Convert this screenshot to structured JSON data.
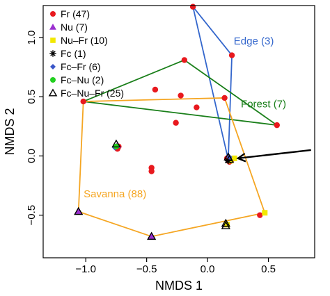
{
  "chart_data": {
    "type": "scatter",
    "xlabel": "NMDS 1",
    "ylabel": "NMDS 2",
    "xlim": [
      -1.35,
      0.88
    ],
    "ylim": [
      -0.86,
      1.27
    ],
    "xticks": [
      -1.0,
      -0.5,
      0.0,
      0.5
    ],
    "xtick_labels": [
      "−1.0",
      "−0.5",
      "0.0",
      "0.5"
    ],
    "yticks": [
      -0.5,
      0.0,
      0.5,
      1.0
    ],
    "ytick_labels": [
      "−0.5",
      "0.0",
      "0.5",
      "1.0"
    ],
    "grid": false,
    "legend_position": "top-left",
    "legend": [
      {
        "label": "Fr (47)",
        "marker": "circle",
        "color": "#e8191e"
      },
      {
        "label": "Nu (7)",
        "marker": "triangle",
        "color": "#9b30d0"
      },
      {
        "label": "Nu–Fr (10)",
        "marker": "square",
        "color": "#f2e800"
      },
      {
        "label": "Fc (1)",
        "marker": "asterisk",
        "color": "#000000"
      },
      {
        "label": "Fc–Fr (6)",
        "marker": "diamond",
        "color": "#3a56c8"
      },
      {
        "label": "Fc–Nu (2)",
        "marker": "circle",
        "color": "#22d020"
      },
      {
        "label": "Fc–Nu–Fr (25)",
        "marker": "open-triangle",
        "color": "#000000"
      }
    ],
    "hulls": [
      {
        "label": "Edge (3)",
        "color": "#3366cc",
        "label_at": [
          0.38,
          0.94
        ],
        "vertices": [
          [
            -0.12,
            1.26
          ],
          [
            0.2,
            0.85
          ],
          [
            0.17,
            -0.03
          ]
        ]
      },
      {
        "label": "Forest (7)",
        "color": "#1a7f1a",
        "label_at": [
          0.46,
          0.41
        ],
        "vertices": [
          [
            -0.19,
            0.81
          ],
          [
            0.57,
            0.26
          ],
          [
            -1.02,
            0.46
          ]
        ]
      },
      {
        "label": "Savanna (88)",
        "color": "#f5a623",
        "label_at": [
          -0.76,
          -0.35
        ],
        "vertices": [
          [
            -1.02,
            0.46
          ],
          [
            0.14,
            0.49
          ],
          [
            0.47,
            -0.48
          ],
          [
            -0.46,
            -0.68
          ],
          [
            -1.06,
            -0.47
          ]
        ]
      }
    ],
    "points": [
      {
        "group": "Fr",
        "x": -0.12,
        "y": 1.26
      },
      {
        "group": "Fr",
        "x": 0.2,
        "y": 0.85
      },
      {
        "group": "Fr",
        "x": -0.19,
        "y": 0.81
      },
      {
        "group": "Fr",
        "x": 0.57,
        "y": 0.26
      },
      {
        "group": "Fr",
        "x": -1.02,
        "y": 0.46
      },
      {
        "group": "Fr",
        "x": -0.43,
        "y": 0.56
      },
      {
        "group": "Fr",
        "x": -0.22,
        "y": 0.51
      },
      {
        "group": "Fr",
        "x": 0.14,
        "y": 0.49
      },
      {
        "group": "Fr",
        "x": -0.09,
        "y": 0.41
      },
      {
        "group": "Fr",
        "x": -0.26,
        "y": 0.28
      },
      {
        "group": "Fr",
        "x": -0.73,
        "y": 0.08
      },
      {
        "group": "Fr",
        "x": -0.74,
        "y": 0.06
      },
      {
        "group": "Fr",
        "x": -0.46,
        "y": -0.1
      },
      {
        "group": "Fr",
        "x": -0.46,
        "y": -0.13
      },
      {
        "group": "Fr",
        "x": 0.43,
        "y": -0.5
      },
      {
        "group": "Fr",
        "x": 0.16,
        "y": -0.02
      },
      {
        "group": "Fr",
        "x": 0.18,
        "y": -0.05
      },
      {
        "group": "Fr",
        "x": 0.2,
        "y": -0.03
      },
      {
        "group": "Nu",
        "x": -1.06,
        "y": -0.47
      },
      {
        "group": "Nu",
        "x": -0.46,
        "y": -0.68
      },
      {
        "group": "Nu",
        "x": 0.15,
        "y": -0.58
      },
      {
        "group": "Nu",
        "x": -0.74,
        "y": 0.09
      },
      {
        "group": "Nu-Fr",
        "x": 0.47,
        "y": -0.48
      },
      {
        "group": "Nu-Fr",
        "x": 0.16,
        "y": -0.58
      },
      {
        "group": "Nu-Fr",
        "x": 0.22,
        "y": -0.02
      },
      {
        "group": "Nu-Fr",
        "x": 0.19,
        "y": -0.04
      },
      {
        "group": "Fc",
        "x": 0.17,
        "y": -0.04
      },
      {
        "group": "Fc-Fr",
        "x": -0.76,
        "y": 0.07
      },
      {
        "group": "Fc-Fr",
        "x": 0.18,
        "y": -0.01
      },
      {
        "group": "Fc-Nu",
        "x": -0.75,
        "y": 0.08
      },
      {
        "group": "Fc-Nu-Fr",
        "x": -0.75,
        "y": 0.1
      },
      {
        "group": "Fc-Nu-Fr",
        "x": -1.06,
        "y": -0.47
      },
      {
        "group": "Fc-Nu-Fr",
        "x": -0.46,
        "y": -0.68
      },
      {
        "group": "Fc-Nu-Fr",
        "x": 0.15,
        "y": -0.57
      },
      {
        "group": "Fc-Nu-Fr",
        "x": 0.15,
        "y": -0.59
      },
      {
        "group": "Fc-Nu-Fr",
        "x": 0.17,
        "y": -0.01
      },
      {
        "group": "Fc-Nu-Fr",
        "x": 0.18,
        "y": -0.03
      }
    ],
    "arrow": {
      "from": [
        0.85,
        0.05
      ],
      "to": [
        0.25,
        -0.02
      ]
    }
  }
}
